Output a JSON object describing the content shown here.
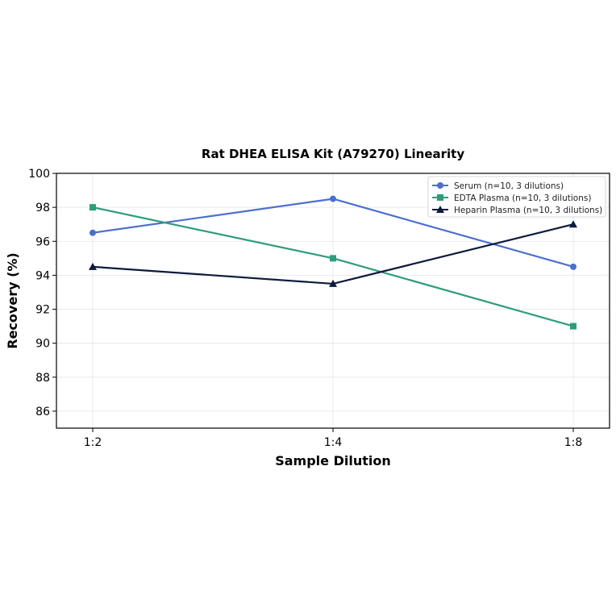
{
  "chart_data": {
    "type": "line",
    "title": "Rat DHEA ELISA Kit (A79270) Linearity",
    "xlabel": "Sample Dilution",
    "ylabel": "Recovery (%)",
    "categories": [
      "1:2",
      "1:4",
      "1:8"
    ],
    "ylim": [
      85,
      100
    ],
    "yticks": [
      86,
      88,
      90,
      92,
      94,
      96,
      98,
      100
    ],
    "grid": true,
    "legend_position": "top-right",
    "series": [
      {
        "name": "Serum (n=10, 3 dilutions)",
        "values": [
          96.5,
          98.5,
          94.5
        ],
        "color": "#4c6fcf",
        "marker": "circle"
      },
      {
        "name": "EDTA Plasma (n=10, 3 dilutions)",
        "values": [
          98.0,
          95.0,
          91.0
        ],
        "color": "#2e9c7c",
        "marker": "square"
      },
      {
        "name": "Heparin Plasma (n=10, 3 dilutions)",
        "values": [
          94.5,
          93.5,
          97.0
        ],
        "color": "#0e1a3c",
        "marker": "triangle"
      }
    ]
  }
}
